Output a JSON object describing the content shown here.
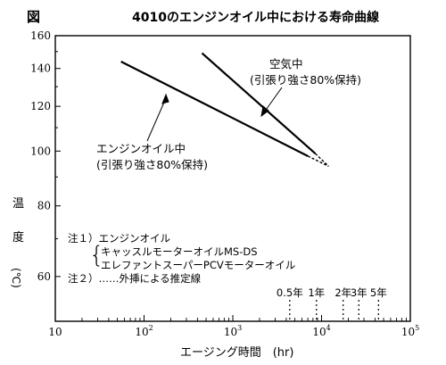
{
  "chart_data": {
    "type": "line",
    "fig_label": "図",
    "title": "4010のエンジンオイル中における寿命曲線",
    "xlabel": "エージング時間　(hr)",
    "ylabel": [
      "温",
      "度",
      "(℃)"
    ],
    "x_scale": "log",
    "y_scale": "log",
    "xlim": [
      10,
      100000
    ],
    "ylim": [
      50,
      160
    ],
    "x_ticks": [
      {
        "value": 10,
        "base": "10",
        "exp": ""
      },
      {
        "value": 100,
        "base": "10",
        "exp": "2"
      },
      {
        "value": 1000,
        "base": "10",
        "exp": "3"
      },
      {
        "value": 10000,
        "base": "10",
        "exp": "4"
      },
      {
        "value": 100000,
        "base": "10",
        "exp": "5"
      }
    ],
    "y_ticks": [
      60,
      80,
      100,
      120,
      140,
      160
    ],
    "series": [
      {
        "name": "エンジンオイル中",
        "label_lines": [
          "エンジンオイル中",
          "(引張り強さ80%保持)"
        ],
        "points": [
          {
            "x": 55,
            "y": 144
          },
          {
            "x": 7000,
            "y": 98
          }
        ],
        "extrapolated": [
          {
            "x": 7000,
            "y": 98
          },
          {
            "x": 12000,
            "y": 94
          }
        ]
      },
      {
        "name": "空気中",
        "label_lines": [
          "空気中",
          "(引張り強さ80%保持)"
        ],
        "points": [
          {
            "x": 450,
            "y": 149
          },
          {
            "x": 8500,
            "y": 99
          }
        ],
        "extrapolated": [
          {
            "x": 8500,
            "y": 99
          },
          {
            "x": 12000,
            "y": 94
          }
        ]
      }
    ],
    "time_markers": [
      {
        "label": "0.5年",
        "hours": 4380
      },
      {
        "label": "1年",
        "hours": 8760
      },
      {
        "label": "2年",
        "hours": 17520
      },
      {
        "label": "3年",
        "hours": 26280
      },
      {
        "label": "5年",
        "hours": 43800
      }
    ],
    "notes": [
      "注１）エンジンオイル",
      "キャッスルモーターオイルMS-DS",
      "エレファントスーパーPCVモーターオイル",
      "注２）……外挿による推定線"
    ]
  }
}
